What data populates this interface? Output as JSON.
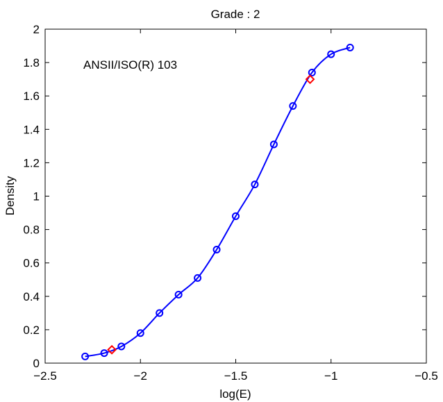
{
  "chart_data": {
    "type": "line",
    "title": "Grade : 2",
    "xlabel": "log(E)",
    "ylabel": "Density",
    "xlim": [
      -2.5,
      -0.5
    ],
    "ylim": [
      0,
      2
    ],
    "xticks": [
      -2.5,
      -2,
      -1.5,
      -1,
      -0.5
    ],
    "xtick_labels": [
      "−2.5",
      "−2",
      "−1.5",
      "−1",
      "−0.5"
    ],
    "yticks": [
      0,
      0.2,
      0.4,
      0.6,
      0.8,
      1,
      1.2,
      1.4,
      1.6,
      1.8,
      2
    ],
    "ytick_labels": [
      "0",
      "0.2",
      "0.4",
      "0.6",
      "0.8",
      "1",
      "1.2",
      "1.4",
      "1.6",
      "1.8",
      "2"
    ],
    "grid": false,
    "annotation": "ANSII/ISO(R) 103",
    "series": [
      {
        "marker": "circle",
        "color": "#0000ff",
        "x": [
          -2.29,
          -2.19,
          -2.1,
          -2.0,
          -1.9,
          -1.8,
          -1.7,
          -1.6,
          -1.5,
          -1.4,
          -1.3,
          -1.2,
          -1.1,
          -1.0,
          -0.9
        ],
        "y": [
          0.04,
          0.06,
          0.1,
          0.18,
          0.3,
          0.41,
          0.51,
          0.68,
          0.88,
          1.07,
          1.31,
          1.54,
          1.74,
          1.85,
          1.89
        ]
      },
      {
        "marker": "diamond",
        "color": "#ff0000",
        "x": [
          -2.15,
          -1.11
        ],
        "y": [
          0.08,
          1.7
        ]
      }
    ]
  }
}
